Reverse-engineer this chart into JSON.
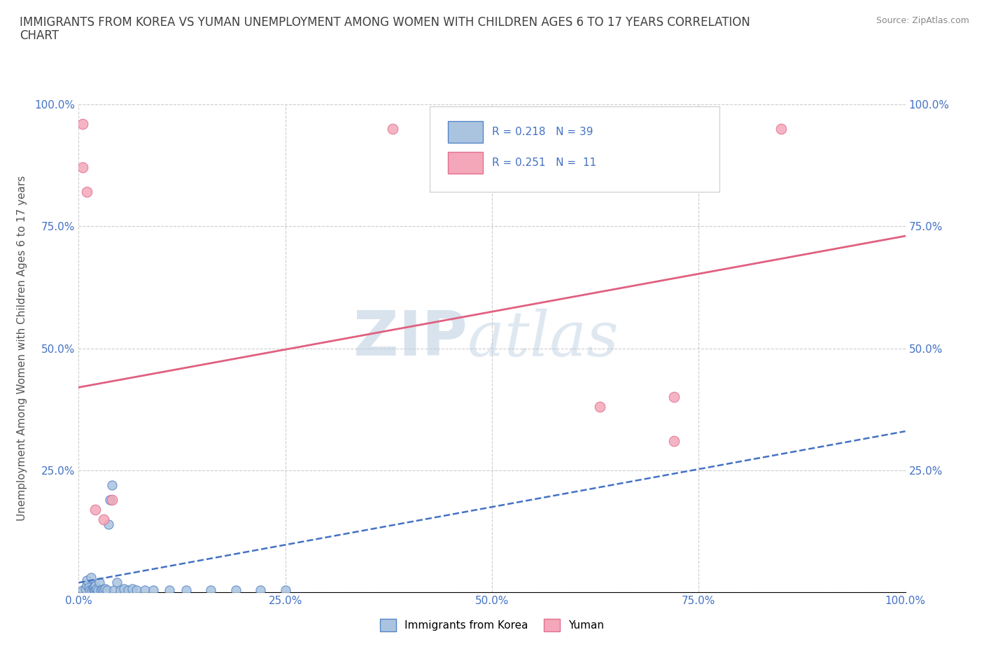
{
  "title_line1": "IMMIGRANTS FROM KOREA VS YUMAN UNEMPLOYMENT AMONG WOMEN WITH CHILDREN AGES 6 TO 17 YEARS CORRELATION",
  "title_line2": "CHART",
  "source": "Source: ZipAtlas.com",
  "ylabel": "Unemployment Among Women with Children Ages 6 to 17 years",
  "xlim": [
    0.0,
    1.0
  ],
  "ylim": [
    0.0,
    1.0
  ],
  "xticks": [
    0.0,
    0.25,
    0.5,
    0.75,
    1.0
  ],
  "yticks": [
    0.0,
    0.25,
    0.5,
    0.75,
    1.0
  ],
  "xtick_labels": [
    "0.0%",
    "25.0%",
    "50.0%",
    "75.0%",
    "100.0%"
  ],
  "ytick_labels": [
    "",
    "25.0%",
    "50.0%",
    "75.0%",
    "100.0%"
  ],
  "right_ytick_labels": [
    "25.0%",
    "50.0%",
    "75.0%",
    "100.0%"
  ],
  "watermark_zip": "ZIP",
  "watermark_atlas": "atlas",
  "blue_R": "0.218",
  "blue_N": "39",
  "pink_R": "0.251",
  "pink_N": "11",
  "blue_scatter_color": "#aac4e0",
  "pink_scatter_color": "#f4a7b9",
  "blue_edge_color": "#5585c5",
  "pink_edge_color": "#e07090",
  "blue_line_color": "#4472c4",
  "pink_line_color": "#e06080",
  "legend_label_blue": "Immigrants from Korea",
  "legend_label_pink": "Yuman",
  "blue_scatter_x": [
    0.005,
    0.008,
    0.01,
    0.01,
    0.012,
    0.013,
    0.015,
    0.016,
    0.017,
    0.018,
    0.019,
    0.02,
    0.021,
    0.022,
    0.023,
    0.025,
    0.027,
    0.028,
    0.03,
    0.032,
    0.034,
    0.036,
    0.038,
    0.04,
    0.043,
    0.046,
    0.05,
    0.055,
    0.06,
    0.065,
    0.07,
    0.08,
    0.09,
    0.11,
    0.13,
    0.16,
    0.19,
    0.22,
    0.25
  ],
  "blue_scatter_y": [
    0.005,
    0.008,
    0.015,
    0.025,
    0.01,
    0.005,
    0.03,
    0.005,
    0.007,
    0.01,
    0.005,
    0.013,
    0.005,
    0.008,
    0.005,
    0.02,
    0.005,
    0.006,
    0.005,
    0.007,
    0.005,
    0.14,
    0.19,
    0.22,
    0.005,
    0.02,
    0.005,
    0.008,
    0.005,
    0.007,
    0.005,
    0.005,
    0.005,
    0.005,
    0.005,
    0.005,
    0.005,
    0.005,
    0.005
  ],
  "pink_scatter_x": [
    0.005,
    0.005,
    0.01,
    0.02,
    0.03,
    0.04,
    0.38,
    0.63,
    0.72,
    0.72,
    0.85
  ],
  "pink_scatter_y": [
    0.96,
    0.87,
    0.82,
    0.17,
    0.15,
    0.19,
    0.95,
    0.38,
    0.4,
    0.31,
    0.95
  ],
  "blue_trend_x": [
    0.0,
    1.0
  ],
  "blue_trend_y": [
    0.02,
    0.33
  ],
  "pink_trend_x": [
    0.0,
    1.0
  ],
  "pink_trend_y": [
    0.42,
    0.73
  ],
  "background_color": "#ffffff",
  "grid_color": "#cccccc",
  "title_color": "#404040",
  "axis_label_color": "#555555",
  "tick_label_color": "#4472c4"
}
